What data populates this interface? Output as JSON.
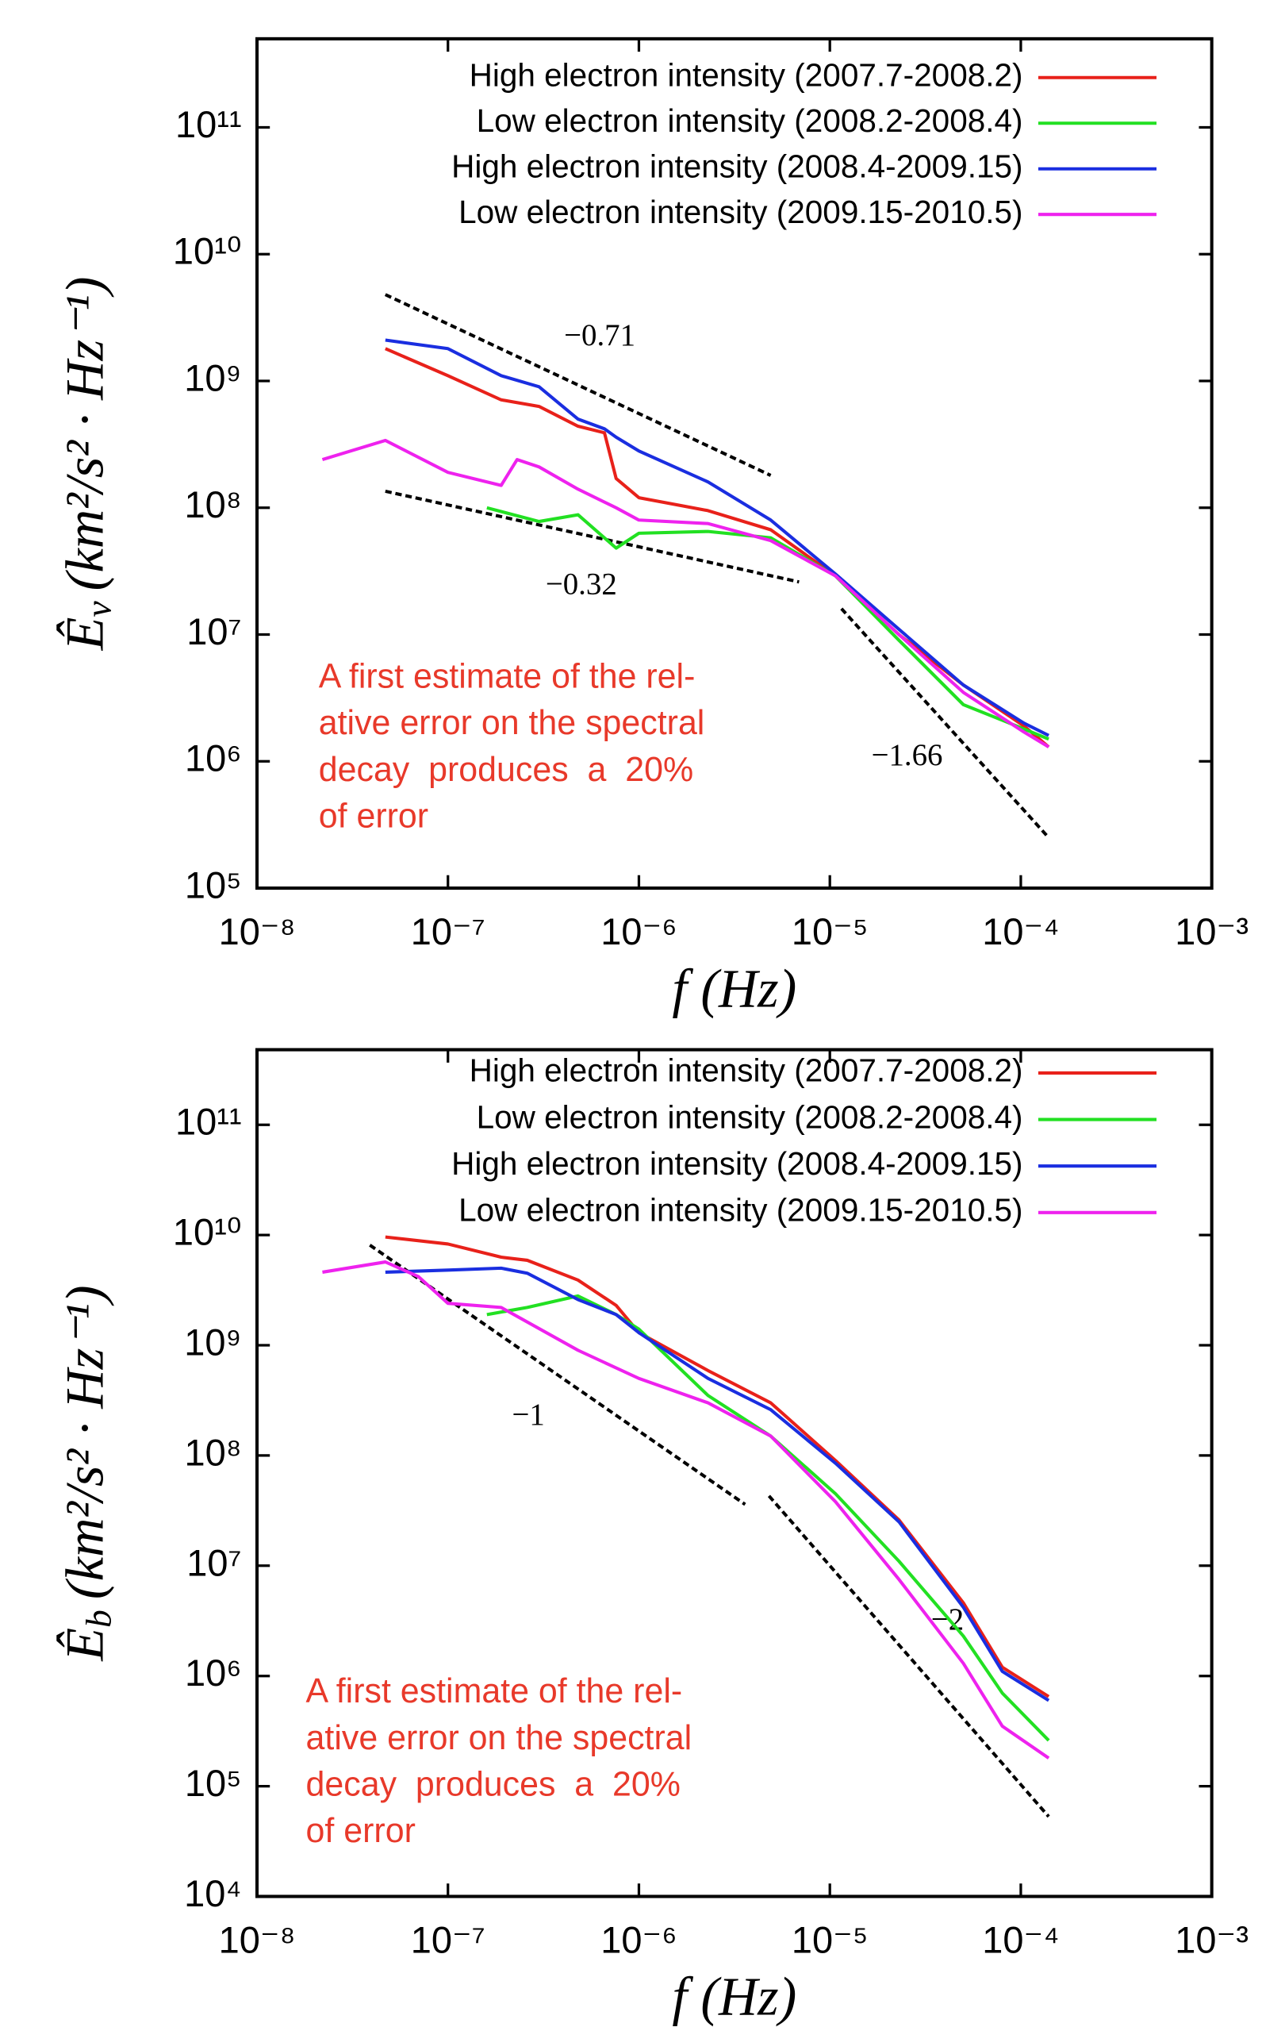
{
  "chart_data": [
    {
      "type": "line",
      "log_x": true,
      "log_y": true,
      "legend": "upper right",
      "note_position": "lower left",
      "xlabel": "f (Hz)",
      "ylabel": {
        "symbol": "Ê",
        "subscript": "v",
        "units": "(km²/s² · Hz⁻¹)"
      },
      "xlim": [
        1e-08,
        0.001
      ],
      "xticks": [
        {
          "value": 1e-08,
          "label": "10⁻⁸"
        },
        {
          "value": 1e-07,
          "label": "10⁻⁷"
        },
        {
          "value": 1e-06,
          "label": "10⁻⁶"
        },
        {
          "value": 1e-05,
          "label": "10⁻⁵"
        },
        {
          "value": 0.0001,
          "label": "10⁻⁴"
        },
        {
          "value": 0.001,
          "label": "10⁻³"
        }
      ],
      "ylim": [
        100000.0,
        500000000000.0
      ],
      "yticks": [
        {
          "value": 100000.0,
          "label": "10⁵"
        },
        {
          "value": 1000000.0,
          "label": "10⁶"
        },
        {
          "value": 10000000.0,
          "label": "10⁷"
        },
        {
          "value": 100000000.0,
          "label": "10⁸"
        },
        {
          "value": 1000000000.0,
          "label": "10⁹"
        },
        {
          "value": 10000000000.0,
          "label": "10¹⁰"
        },
        {
          "value": 100000000000.0,
          "label": "10¹¹"
        }
      ],
      "series": [
        {
          "name": "High electron intensity (2007.7-2008.2)",
          "color": "#e8211a",
          "x": [
            4.7e-08,
            1e-07,
            1.9e-07,
            3e-07,
            4.8e-07,
            6.6e-07,
            7.6e-07,
            1e-06,
            2.3e-06,
            4.9e-06,
            1.07e-05,
            2.3e-05,
            5e-05,
            0.000104,
            0.00014
          ],
          "values": [
            1800000000.0,
            1100000000.0,
            710000000.0,
            630000000.0,
            440000000.0,
            390000000.0,
            170000000.0,
            120000000.0,
            95000000.0,
            67000000.0,
            29000000.0,
            10000000.0,
            4000000.0,
            1900000.0,
            1300000.0
          ]
        },
        {
          "name": "Low electron intensity (2008.2-2008.4)",
          "color": "#22e022",
          "x": [
            1.6e-07,
            3e-07,
            4.8e-07,
            7.6e-07,
            1e-06,
            2.3e-06,
            4.9e-06,
            1.07e-05,
            2.3e-05,
            5e-05,
            0.000104,
            0.00014
          ],
          "values": [
            100000000.0,
            78000000.0,
            88000000.0,
            48000000.0,
            63000000.0,
            65000000.0,
            58000000.0,
            29000000.0,
            9000000.0,
            2800000.0,
            1800000.0,
            1500000.0
          ]
        },
        {
          "name": "High electron intensity (2008.4-2009.15)",
          "color": "#1a2ee0",
          "x": [
            4.7e-08,
            1e-07,
            1.9e-07,
            3e-07,
            4.8e-07,
            6.6e-07,
            7.6e-07,
            1e-06,
            2.3e-06,
            4.9e-06,
            1.07e-05,
            2.3e-05,
            5e-05,
            0.000104,
            0.00014
          ],
          "values": [
            2100000000.0,
            1800000000.0,
            1100000000.0,
            900000000.0,
            500000000.0,
            420000000.0,
            360000000.0,
            280000000.0,
            160000000.0,
            80000000.0,
            30000000.0,
            11000000.0,
            4000000.0,
            2000000.0,
            1600000.0
          ]
        },
        {
          "name": "Low electron intensity (2009.15-2010.5)",
          "color": "#ee22ee",
          "x": [
            2.2e-08,
            4.7e-08,
            1e-07,
            1.9e-07,
            2.3e-07,
            3e-07,
            4.8e-07,
            7.6e-07,
            1e-06,
            2.3e-06,
            4.9e-06,
            1.07e-05,
            2.3e-05,
            5e-05,
            0.000104,
            0.00014
          ],
          "values": [
            240000000.0,
            340000000.0,
            190000000.0,
            150000000.0,
            240000000.0,
            210000000.0,
            140000000.0,
            100000000.0,
            80000000.0,
            75000000.0,
            55000000.0,
            29000000.0,
            10000000.0,
            3500000.0,
            1700000.0,
            1300000.0
          ]
        }
      ],
      "reference_lines": [
        {
          "label": "−0.71",
          "label_position": "above",
          "x": [
            4.7e-08,
            4.9e-06
          ],
          "y": [
            4800000000.0,
            180000000.0
          ]
        },
        {
          "label": "−0.32",
          "label_position": "below",
          "x": [
            4.7e-08,
            6.9e-06
          ],
          "y": [
            135000000.0,
            26000000.0
          ]
        },
        {
          "label": "−1.66",
          "label_position": "below",
          "x": [
            1.15e-05,
            0.00014
          ],
          "y": [
            16000000.0,
            250000.0
          ]
        }
      ],
      "note": {
        "color": "#e8392a",
        "lines": [
          "A first estimate of the rel-",
          "ative error on the spectral",
          "decay  produces  a  20%",
          "of error"
        ]
      }
    },
    {
      "type": "line",
      "log_x": true,
      "log_y": true,
      "legend": "upper right",
      "note_position": "lower left",
      "xlabel": "f (Hz)",
      "ylabel": {
        "symbol": "Ê",
        "subscript": "b",
        "units": "(km²/s² · Hz⁻¹)"
      },
      "xlim": [
        1e-08,
        0.001
      ],
      "xticks": [
        {
          "value": 1e-08,
          "label": "10⁻⁸"
        },
        {
          "value": 1e-07,
          "label": "10⁻⁷"
        },
        {
          "value": 1e-06,
          "label": "10⁻⁶"
        },
        {
          "value": 1e-05,
          "label": "10⁻⁵"
        },
        {
          "value": 0.0001,
          "label": "10⁻⁴"
        },
        {
          "value": 0.001,
          "label": "10⁻³"
        }
      ],
      "ylim": [
        10000.0,
        480000000000.0
      ],
      "yticks": [
        {
          "value": 10000.0,
          "label": "10⁴"
        },
        {
          "value": 100000.0,
          "label": "10⁵"
        },
        {
          "value": 1000000.0,
          "label": "10⁶"
        },
        {
          "value": 10000000.0,
          "label": "10⁷"
        },
        {
          "value": 100000000.0,
          "label": "10⁸"
        },
        {
          "value": 1000000000.0,
          "label": "10⁹"
        },
        {
          "value": 10000000000.0,
          "label": "10¹⁰"
        },
        {
          "value": 100000000000.0,
          "label": "10¹¹"
        }
      ],
      "series": [
        {
          "name": "High electron intensity (2007.7-2008.2)",
          "color": "#e8211a",
          "x": [
            4.7e-08,
            1e-07,
            1.9e-07,
            2.6e-07,
            4.8e-07,
            7.6e-07,
            1e-06,
            2.3e-06,
            4.9e-06,
            1.07e-05,
            2.3e-05,
            5e-05,
            8e-05,
            0.00014
          ],
          "values": [
            9600000000.0,
            8300000000.0,
            6300000000.0,
            5900000000.0,
            3900000000.0,
            2300000000.0,
            1300000000.0,
            590000000.0,
            300000000.0,
            90000000.0,
            26000000.0,
            4600000.0,
            1200000.0,
            650000.0
          ]
        },
        {
          "name": "Low electron intensity (2008.2-2008.4)",
          "color": "#22e022",
          "x": [
            1.6e-07,
            2.6e-07,
            4.8e-07,
            7.6e-07,
            1e-06,
            2.3e-06,
            4.9e-06,
            1.07e-05,
            2.3e-05,
            5e-05,
            8e-05,
            0.00014
          ],
          "values": [
            1900000000.0,
            2200000000.0,
            2800000000.0,
            1900000000.0,
            1400000000.0,
            350000000.0,
            150000000.0,
            45000000.0,
            11000000.0,
            2300000.0,
            700000.0,
            260000.0
          ]
        },
        {
          "name": "High electron intensity (2008.4-2009.15)",
          "color": "#1a2ee0",
          "x": [
            4.7e-08,
            1e-07,
            1.9e-07,
            2.6e-07,
            4.8e-07,
            7.6e-07,
            1e-06,
            2.3e-06,
            4.9e-06,
            1.07e-05,
            2.3e-05,
            5e-05,
            8e-05,
            0.00014
          ],
          "values": [
            4600000000.0,
            4800000000.0,
            5000000000.0,
            4500000000.0,
            2600000000.0,
            1900000000.0,
            1300000000.0,
            500000000.0,
            260000000.0,
            85000000.0,
            25000000.0,
            4200000.0,
            1100000.0,
            600000.0
          ]
        },
        {
          "name": "Low electron intensity (2009.15-2010.5)",
          "color": "#ee22ee",
          "x": [
            2.2e-08,
            4.7e-08,
            7e-08,
            1e-07,
            1.9e-07,
            4.8e-07,
            1e-06,
            2.3e-06,
            4.9e-06,
            1.07e-05,
            2.3e-05,
            5e-05,
            8e-05,
            0.00014
          ],
          "values": [
            4600000000.0,
            5700000000.0,
            4200000000.0,
            2400000000.0,
            2200000000.0,
            900000000.0,
            500000000.0,
            300000000.0,
            150000000.0,
            38000000.0,
            7500000.0,
            1300000.0,
            350000.0,
            180000.0
          ]
        }
      ],
      "reference_lines": [
        {
          "label": "−1",
          "label_position": "below",
          "x": [
            3.9e-08,
            3.6e-06
          ],
          "y": [
            8100000000.0,
            36000000.0
          ]
        },
        {
          "label": "−2",
          "label_position": "above",
          "x": [
            4.8e-06,
            0.00014
          ],
          "y": [
            43000000.0,
            53000.0
          ]
        }
      ],
      "note": {
        "color": "#e8392a",
        "lines": [
          "A first estimate of the rel-",
          "ative error on the spectral",
          "decay  produces  a  20%",
          "of error"
        ]
      }
    }
  ]
}
